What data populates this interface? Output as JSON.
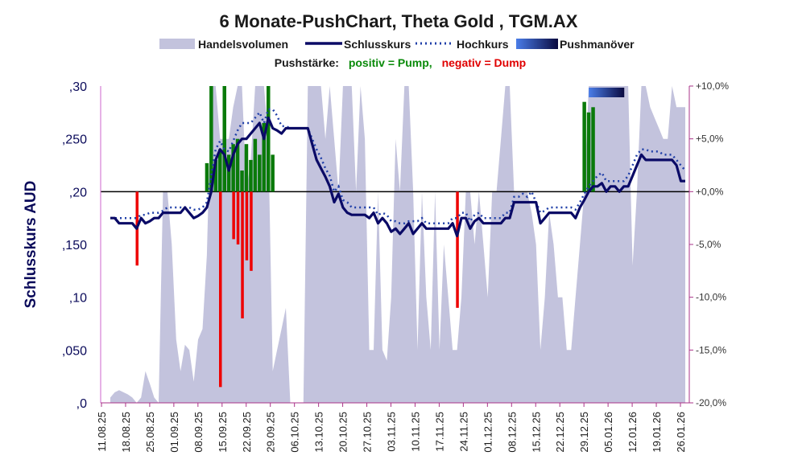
{
  "chart_data": {
    "type": "line",
    "title": "6 Monate-PushChart, Theta Gold , TGM.AX",
    "legend": {
      "volume": "Handelsvolumen",
      "close": "Schlusskurs",
      "high": "Hochkurs",
      "push": "Pushmanöver",
      "push_label": "Pushstärke:",
      "pos_label": "positiv = Pump,",
      "neg_label": "negativ = Dump"
    },
    "ylabel": "Schlusskurs AUD",
    "ylim": [
      0,
      0.3
    ],
    "y2lim": [
      -20,
      10
    ],
    "y_ticks": [
      ",0",
      ",050",
      ",10",
      ",150",
      ",20",
      ",250",
      ",30"
    ],
    "y2_ticks": [
      "-20,0%",
      "-15,0%",
      "-10,0%",
      "-5,0%",
      "+0,0%",
      "+5,0%",
      "+10,0%"
    ],
    "baseline": 0.2,
    "grid": false,
    "x_ticks": [
      "11.08.25",
      "18.08.25",
      "25.08.25",
      "01.09.25",
      "08.09.25",
      "15.09.25",
      "22.09.25",
      "29.09.25",
      "06.10.25",
      "13.10.25",
      "20.10.25",
      "27.10.25",
      "03.11.25",
      "10.11.25",
      "17.11.25",
      "24.11.25",
      "01.12.25",
      "08.12.25",
      "15.12.25",
      "22.12.25",
      "29.12.25",
      "05.01.26",
      "12.01.26",
      "19.01.26",
      "26.01.26"
    ],
    "x_range": [
      0,
      121
    ],
    "close": [
      [
        0,
        0.175
      ],
      [
        1,
        0.175
      ],
      [
        2,
        0.17
      ],
      [
        3,
        0.17
      ],
      [
        4,
        0.17
      ],
      [
        5,
        0.17
      ],
      [
        6,
        0.165
      ],
      [
        7,
        0.175
      ],
      [
        8,
        0.17
      ],
      [
        9,
        0.172
      ],
      [
        10,
        0.175
      ],
      [
        11,
        0.175
      ],
      [
        12,
        0.18
      ],
      [
        13,
        0.18
      ],
      [
        14,
        0.18
      ],
      [
        15,
        0.18
      ],
      [
        16,
        0.18
      ],
      [
        17,
        0.185
      ],
      [
        18,
        0.18
      ],
      [
        19,
        0.175
      ],
      [
        20,
        0.177
      ],
      [
        21,
        0.18
      ],
      [
        22,
        0.185
      ],
      [
        23,
        0.2
      ],
      [
        24,
        0.23
      ],
      [
        25,
        0.24
      ],
      [
        26,
        0.235
      ],
      [
        27,
        0.22
      ],
      [
        28,
        0.235
      ],
      [
        29,
        0.245
      ],
      [
        30,
        0.25
      ],
      [
        31,
        0.25
      ],
      [
        32,
        0.255
      ],
      [
        33,
        0.26
      ],
      [
        34,
        0.265
      ],
      [
        35,
        0.25
      ],
      [
        36,
        0.27
      ],
      [
        37,
        0.26
      ],
      [
        38,
        0.258
      ],
      [
        39,
        0.255
      ],
      [
        40,
        0.26
      ],
      [
        41,
        0.26
      ],
      [
        42,
        0.26
      ],
      [
        43,
        0.26
      ],
      [
        44,
        0.26
      ],
      [
        45,
        0.26
      ],
      [
        46,
        0.245
      ],
      [
        47,
        0.23
      ],
      [
        48,
        0.222
      ],
      [
        49,
        0.214
      ],
      [
        50,
        0.205
      ],
      [
        51,
        0.19
      ],
      [
        52,
        0.198
      ],
      [
        53,
        0.185
      ],
      [
        54,
        0.18
      ],
      [
        55,
        0.178
      ],
      [
        56,
        0.178
      ],
      [
        57,
        0.178
      ],
      [
        58,
        0.178
      ],
      [
        59,
        0.175
      ],
      [
        60,
        0.18
      ],
      [
        61,
        0.17
      ],
      [
        62,
        0.175
      ],
      [
        63,
        0.17
      ],
      [
        64,
        0.162
      ],
      [
        65,
        0.165
      ],
      [
        66,
        0.16
      ],
      [
        67,
        0.165
      ],
      [
        68,
        0.17
      ],
      [
        69,
        0.16
      ],
      [
        70,
        0.165
      ],
      [
        71,
        0.17
      ],
      [
        72,
        0.165
      ],
      [
        73,
        0.165
      ],
      [
        74,
        0.165
      ],
      [
        75,
        0.165
      ],
      [
        76,
        0.165
      ],
      [
        77,
        0.165
      ],
      [
        78,
        0.17
      ],
      [
        79,
        0.158
      ],
      [
        80,
        0.175
      ],
      [
        81,
        0.175
      ],
      [
        82,
        0.165
      ],
      [
        83,
        0.172
      ],
      [
        84,
        0.175
      ],
      [
        85,
        0.17
      ],
      [
        86,
        0.17
      ],
      [
        87,
        0.17
      ],
      [
        88,
        0.17
      ],
      [
        89,
        0.17
      ],
      [
        90,
        0.175
      ],
      [
        91,
        0.175
      ],
      [
        92,
        0.19
      ],
      [
        93,
        0.19
      ],
      [
        94,
        0.19
      ],
      [
        95,
        0.19
      ],
      [
        96,
        0.19
      ],
      [
        97,
        0.19
      ],
      [
        98,
        0.17
      ],
      [
        99,
        0.175
      ],
      [
        100,
        0.18
      ],
      [
        101,
        0.18
      ],
      [
        102,
        0.18
      ],
      [
        103,
        0.18
      ],
      [
        104,
        0.18
      ],
      [
        105,
        0.18
      ],
      [
        106,
        0.175
      ],
      [
        107,
        0.185
      ],
      [
        108,
        0.192
      ],
      [
        109,
        0.2
      ],
      [
        110,
        0.205
      ],
      [
        111,
        0.205
      ],
      [
        112,
        0.208
      ],
      [
        113,
        0.2
      ],
      [
        114,
        0.205
      ],
      [
        115,
        0.205
      ],
      [
        116,
        0.2
      ],
      [
        117,
        0.205
      ],
      [
        118,
        0.205
      ],
      [
        119,
        0.215
      ],
      [
        120,
        0.225
      ],
      [
        121,
        0.235
      ],
      [
        122,
        0.23
      ],
      [
        123,
        0.23
      ],
      [
        124,
        0.23
      ],
      [
        125,
        0.23
      ],
      [
        126,
        0.23
      ],
      [
        127,
        0.23
      ],
      [
        128,
        0.23
      ],
      [
        129,
        0.225
      ],
      [
        130,
        0.21
      ],
      [
        131,
        0.21
      ]
    ],
    "high": [
      [
        0,
        0.175
      ],
      [
        1,
        0.175
      ],
      [
        2,
        0.175
      ],
      [
        3,
        0.175
      ],
      [
        4,
        0.175
      ],
      [
        5,
        0.175
      ],
      [
        6,
        0.175
      ],
      [
        7,
        0.178
      ],
      [
        8,
        0.178
      ],
      [
        9,
        0.18
      ],
      [
        10,
        0.18
      ],
      [
        11,
        0.18
      ],
      [
        12,
        0.182
      ],
      [
        13,
        0.185
      ],
      [
        14,
        0.185
      ],
      [
        15,
        0.185
      ],
      [
        16,
        0.185
      ],
      [
        17,
        0.185
      ],
      [
        18,
        0.185
      ],
      [
        19,
        0.183
      ],
      [
        20,
        0.183
      ],
      [
        21,
        0.185
      ],
      [
        22,
        0.19
      ],
      [
        23,
        0.215
      ],
      [
        24,
        0.24
      ],
      [
        25,
        0.248
      ],
      [
        26,
        0.24
      ],
      [
        27,
        0.238
      ],
      [
        28,
        0.248
      ],
      [
        29,
        0.258
      ],
      [
        30,
        0.265
      ],
      [
        31,
        0.265
      ],
      [
        32,
        0.265
      ],
      [
        33,
        0.27
      ],
      [
        34,
        0.275
      ],
      [
        35,
        0.265
      ],
      [
        36,
        0.278
      ],
      [
        37,
        0.278
      ],
      [
        38,
        0.272
      ],
      [
        39,
        0.262
      ],
      [
        40,
        0.262
      ],
      [
        41,
        0.26
      ],
      [
        42,
        0.26
      ],
      [
        43,
        0.26
      ],
      [
        44,
        0.26
      ],
      [
        45,
        0.26
      ],
      [
        46,
        0.25
      ],
      [
        47,
        0.24
      ],
      [
        48,
        0.232
      ],
      [
        49,
        0.222
      ],
      [
        50,
        0.215
      ],
      [
        51,
        0.2
      ],
      [
        52,
        0.205
      ],
      [
        53,
        0.192
      ],
      [
        54,
        0.19
      ],
      [
        55,
        0.185
      ],
      [
        56,
        0.185
      ],
      [
        57,
        0.185
      ],
      [
        58,
        0.185
      ],
      [
        59,
        0.185
      ],
      [
        60,
        0.185
      ],
      [
        61,
        0.178
      ],
      [
        62,
        0.18
      ],
      [
        63,
        0.178
      ],
      [
        64,
        0.172
      ],
      [
        65,
        0.172
      ],
      [
        66,
        0.17
      ],
      [
        67,
        0.17
      ],
      [
        68,
        0.172
      ],
      [
        69,
        0.172
      ],
      [
        70,
        0.172
      ],
      [
        71,
        0.175
      ],
      [
        72,
        0.17
      ],
      [
        73,
        0.17
      ],
      [
        74,
        0.17
      ],
      [
        75,
        0.17
      ],
      [
        76,
        0.17
      ],
      [
        77,
        0.17
      ],
      [
        78,
        0.175
      ],
      [
        79,
        0.175
      ],
      [
        80,
        0.18
      ],
      [
        81,
        0.18
      ],
      [
        82,
        0.172
      ],
      [
        83,
        0.178
      ],
      [
        84,
        0.18
      ],
      [
        85,
        0.175
      ],
      [
        86,
        0.175
      ],
      [
        87,
        0.175
      ],
      [
        88,
        0.175
      ],
      [
        89,
        0.175
      ],
      [
        90,
        0.18
      ],
      [
        91,
        0.18
      ],
      [
        92,
        0.195
      ],
      [
        93,
        0.195
      ],
      [
        94,
        0.198
      ],
      [
        95,
        0.195
      ],
      [
        96,
        0.2
      ],
      [
        97,
        0.19
      ],
      [
        98,
        0.18
      ],
      [
        99,
        0.182
      ],
      [
        100,
        0.185
      ],
      [
        101,
        0.185
      ],
      [
        102,
        0.185
      ],
      [
        103,
        0.185
      ],
      [
        104,
        0.185
      ],
      [
        105,
        0.185
      ],
      [
        106,
        0.183
      ],
      [
        107,
        0.19
      ],
      [
        108,
        0.198
      ],
      [
        109,
        0.205
      ],
      [
        110,
        0.21
      ],
      [
        111,
        0.215
      ],
      [
        112,
        0.218
      ],
      [
        113,
        0.21
      ],
      [
        114,
        0.21
      ],
      [
        115,
        0.21
      ],
      [
        116,
        0.21
      ],
      [
        117,
        0.21
      ],
      [
        118,
        0.215
      ],
      [
        119,
        0.225
      ],
      [
        120,
        0.235
      ],
      [
        121,
        0.24
      ],
      [
        122,
        0.24
      ],
      [
        123,
        0.238
      ],
      [
        124,
        0.238
      ],
      [
        125,
        0.238
      ],
      [
        126,
        0.235
      ],
      [
        127,
        0.235
      ],
      [
        128,
        0.235
      ],
      [
        129,
        0.23
      ],
      [
        130,
        0.225
      ],
      [
        131,
        0.22
      ]
    ],
    "volume": [
      [
        0,
        0.005
      ],
      [
        1,
        0.01
      ],
      [
        2,
        0.012
      ],
      [
        3,
        0.01
      ],
      [
        4,
        0.008
      ],
      [
        5,
        0.005
      ],
      [
        6,
        0.0
      ],
      [
        7,
        0.005
      ],
      [
        8,
        0.03
      ],
      [
        9,
        0.018
      ],
      [
        10,
        0.005
      ],
      [
        11,
        0.0
      ],
      [
        12,
        0.2
      ],
      [
        13,
        0.2
      ],
      [
        14,
        0.15
      ],
      [
        15,
        0.06
      ],
      [
        16,
        0.03
      ],
      [
        17,
        0.055
      ],
      [
        18,
        0.05
      ],
      [
        19,
        0.02
      ],
      [
        20,
        0.06
      ],
      [
        21,
        0.07
      ],
      [
        22,
        0.14
      ],
      [
        23,
        0.3
      ],
      [
        24,
        0.3
      ],
      [
        25,
        0.25
      ],
      [
        26,
        0.25
      ],
      [
        27,
        0.25
      ],
      [
        28,
        0.28
      ],
      [
        29,
        0.3
      ],
      [
        30,
        0.3
      ],
      [
        31,
        0.2
      ],
      [
        32,
        0.23
      ],
      [
        33,
        0.3
      ],
      [
        34,
        0.3
      ],
      [
        35,
        0.3
      ],
      [
        36,
        0.25
      ],
      [
        37,
        0.03
      ],
      [
        38,
        0.05
      ],
      [
        39,
        0.07
      ],
      [
        40,
        0.09
      ],
      [
        41,
        0.0
      ],
      [
        42,
        0.0
      ],
      [
        43,
        0.0
      ],
      [
        44,
        0.0
      ],
      [
        45,
        0.3
      ],
      [
        46,
        0.3
      ],
      [
        47,
        0.3
      ],
      [
        48,
        0.3
      ],
      [
        49,
        0.25
      ],
      [
        50,
        0.3
      ],
      [
        51,
        0.25
      ],
      [
        52,
        0.2
      ],
      [
        53,
        0.3
      ],
      [
        54,
        0.3
      ],
      [
        55,
        0.3
      ],
      [
        56,
        0.2
      ],
      [
        57,
        0.3
      ],
      [
        58,
        0.25
      ],
      [
        59,
        0.05
      ],
      [
        60,
        0.05
      ],
      [
        61,
        0.2
      ],
      [
        62,
        0.05
      ],
      [
        63,
        0.04
      ],
      [
        64,
        0.1
      ],
      [
        65,
        0.25
      ],
      [
        66,
        0.2
      ],
      [
        67,
        0.3
      ],
      [
        68,
        0.3
      ],
      [
        69,
        0.2
      ],
      [
        70,
        0.05
      ],
      [
        71,
        0.2
      ],
      [
        72,
        0.1
      ],
      [
        73,
        0.05
      ],
      [
        74,
        0.2
      ],
      [
        75,
        0.05
      ],
      [
        76,
        0.15
      ],
      [
        77,
        0.1
      ],
      [
        78,
        0.05
      ],
      [
        79,
        0.05
      ],
      [
        80,
        0.1
      ],
      [
        81,
        0.2
      ],
      [
        82,
        0.2
      ],
      [
        83,
        0.15
      ],
      [
        84,
        0.2
      ],
      [
        85,
        0.15
      ],
      [
        86,
        0.1
      ],
      [
        87,
        0.2
      ],
      [
        88,
        0.2
      ],
      [
        89,
        0.25
      ],
      [
        90,
        0.3
      ],
      [
        91,
        0.3
      ],
      [
        92,
        0.2
      ],
      [
        93,
        0.2
      ],
      [
        94,
        0.2
      ],
      [
        95,
        0.2
      ],
      [
        96,
        0.18
      ],
      [
        97,
        0.15
      ],
      [
        98,
        0.05
      ],
      [
        99,
        0.1
      ],
      [
        100,
        0.18
      ],
      [
        101,
        0.15
      ],
      [
        102,
        0.1
      ],
      [
        103,
        0.1
      ],
      [
        104,
        0.05
      ],
      [
        105,
        0.05
      ],
      [
        106,
        0.1
      ],
      [
        107,
        0.15
      ],
      [
        108,
        0.2
      ],
      [
        109,
        0.3
      ],
      [
        110,
        0.3
      ],
      [
        111,
        0.3
      ],
      [
        112,
        0.3
      ],
      [
        113,
        0.3
      ],
      [
        114,
        0.3
      ],
      [
        115,
        0.3
      ],
      [
        116,
        0.3
      ],
      [
        117,
        0.3
      ],
      [
        118,
        0.3
      ],
      [
        119,
        0.13
      ],
      [
        120,
        0.2
      ],
      [
        121,
        0.3
      ],
      [
        122,
        0.3
      ],
      [
        123,
        0.28
      ],
      [
        124,
        0.27
      ],
      [
        125,
        0.26
      ],
      [
        126,
        0.25
      ],
      [
        127,
        0.25
      ],
      [
        128,
        0.3
      ],
      [
        129,
        0.28
      ],
      [
        130,
        0.28
      ],
      [
        131,
        0.28
      ]
    ],
    "pump_bars": [
      [
        22,
        2.7
      ],
      [
        23,
        10
      ],
      [
        24,
        3.0
      ],
      [
        25,
        4.0
      ],
      [
        26,
        10
      ],
      [
        27,
        3.5
      ],
      [
        28,
        4.5
      ],
      [
        29,
        5.0
      ],
      [
        30,
        2.0
      ],
      [
        31,
        4.5
      ],
      [
        32,
        3.0
      ],
      [
        33,
        5.0
      ],
      [
        34,
        3.5
      ],
      [
        35,
        6.5
      ],
      [
        36,
        10
      ],
      [
        37,
        3.5
      ],
      [
        108,
        8.5
      ],
      [
        109,
        7.5
      ],
      [
        110,
        8.0
      ]
    ],
    "dump_bars": [
      [
        6,
        -7.0
      ],
      [
        25,
        -18.5
      ],
      [
        28,
        -4.5
      ],
      [
        29,
        -5.0
      ],
      [
        30,
        -12.0
      ],
      [
        31,
        -6.5
      ],
      [
        32,
        -7.5
      ],
      [
        79,
        -11.0
      ]
    ],
    "push_band": [
      109,
      116
    ]
  }
}
